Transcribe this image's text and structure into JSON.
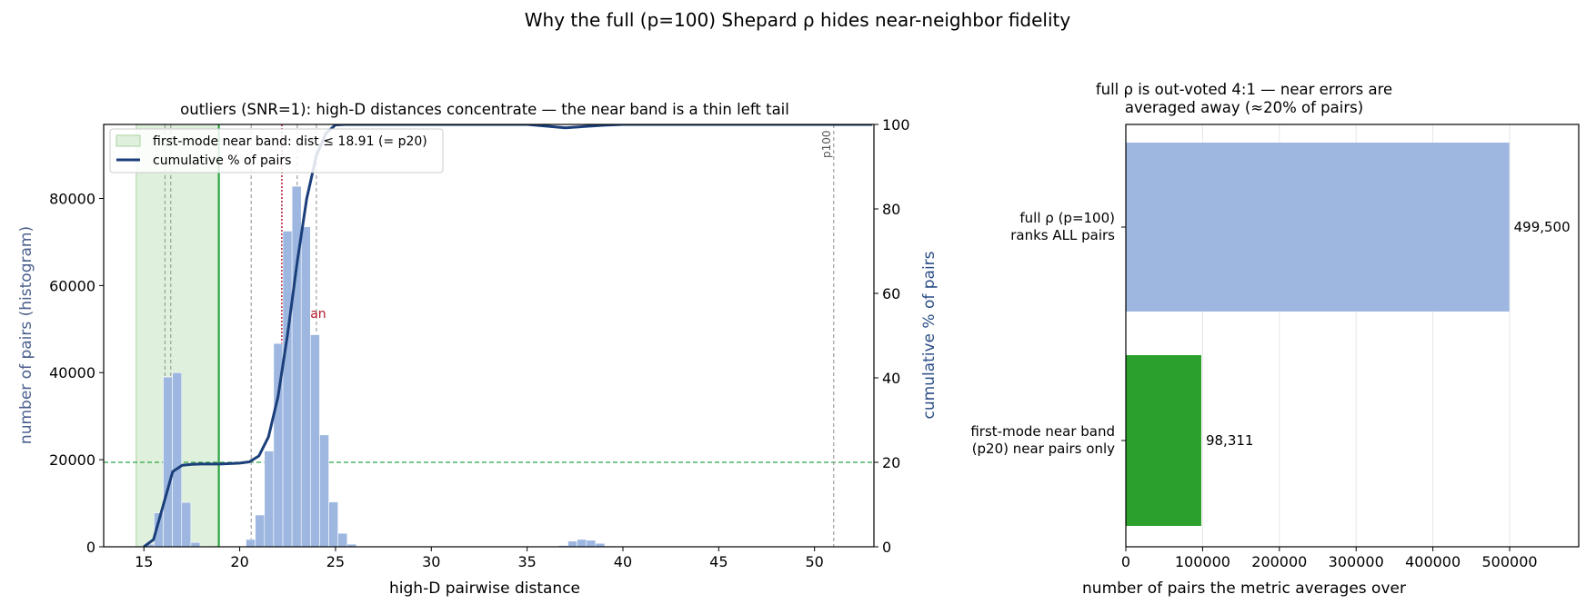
{
  "figure_title": "Why the full (p=100) Shepard ρ hides near-neighbor fidelity",
  "colors": {
    "hist": "#9db7e0",
    "cumulative": "#1b3f7a",
    "near_band_fill": "#dff0dc",
    "near_band_edge": "#a8d5a0",
    "threshold": "#2ca444",
    "mean_line": "#b2182b",
    "percentile_line": "#a0a0a0",
    "full_bar": "#9db7e0",
    "near_bar": "#2ca02c",
    "left_axis_label": "#4a5f8c",
    "right_axis_label": "#2a4d86"
  },
  "chart_data": [
    {
      "type": "bar",
      "title": "outliers (SNR=1): high-D distances concentrate — the near band is a thin left tail",
      "xlabel": "high-D pairwise distance",
      "ylabel": "number of pairs (histogram)",
      "ylabel_right": "cumulative % of pairs",
      "xlim": [
        12.9,
        53.1
      ],
      "ylim": [
        0,
        97000
      ],
      "ylim_right": [
        0,
        100
      ],
      "xticks": [
        15,
        20,
        25,
        30,
        35,
        40,
        45,
        50
      ],
      "yticks": [
        0,
        20000,
        40000,
        60000,
        80000
      ],
      "yticks_right": [
        0,
        20,
        40,
        60,
        80,
        100
      ],
      "bin_width": 0.48,
      "histogram": {
        "bin_left": [
          15.05,
          15.53,
          16.01,
          16.49,
          16.97,
          17.45,
          20.33,
          20.81,
          21.29,
          21.77,
          22.25,
          22.73,
          23.21,
          23.69,
          24.17,
          24.65,
          25.13,
          25.61,
          26.09,
          26.57,
          36.65,
          37.13,
          37.61,
          38.09,
          38.57,
          39.05,
          39.53
        ],
        "counts": [
          600,
          7800,
          39000,
          40000,
          10200,
          1000,
          1700,
          7300,
          22000,
          46700,
          72500,
          82800,
          73500,
          48700,
          25700,
          10300,
          3100,
          600,
          100,
          50,
          300,
          1300,
          1700,
          1500,
          800,
          200,
          80
        ]
      },
      "cumulative_percent": {
        "x": [
          15.0,
          15.5,
          16.0,
          16.5,
          17.0,
          17.5,
          18.0,
          18.5,
          19.0,
          19.5,
          20.0,
          20.5,
          21.0,
          21.5,
          22.0,
          22.5,
          23.0,
          23.5,
          24.0,
          24.5,
          25.0,
          25.5,
          26.0,
          27.0,
          28.0,
          30.0,
          35.0,
          37.0,
          38.0,
          39.0,
          40.0,
          45.0,
          50.0,
          53.0
        ],
        "y": [
          0,
          1.7,
          9.7,
          17.8,
          19.3,
          19.5,
          19.6,
          19.6,
          19.6,
          19.7,
          19.8,
          20.1,
          21.5,
          26.0,
          35.5,
          50.4,
          67.4,
          82.5,
          92.6,
          97.9,
          99.9,
          100,
          100,
          100,
          100,
          100,
          100,
          99.2,
          99.5,
          99.8,
          100,
          100,
          100,
          100
        ]
      },
      "near_band": {
        "label": "first-mode near band: dist ≤ 18.91 (= p20)",
        "x_start": 14.6,
        "x_end": 18.91
      },
      "cumulative_label": "cumulative % of pairs",
      "threshold_x": 18.91,
      "horizontal_reference_y": 20,
      "mean": {
        "x": 22.2,
        "label": "mean"
      },
      "percentile_lines": [
        16.1,
        16.4,
        20.6,
        23.0,
        24.0,
        51.0
      ],
      "p100": {
        "x": 51.0,
        "label": "p100"
      },
      "legend_position": "upper left"
    },
    {
      "type": "bar",
      "orientation": "horizontal",
      "title_lines": [
        "full ρ is out-voted 4:1 — near errors are",
        "averaged away (≈20% of pairs)"
      ],
      "xlabel": "number of pairs the metric averages over",
      "xlim": [
        0,
        590000
      ],
      "xticks": [
        0,
        100000,
        200000,
        300000,
        400000,
        500000
      ],
      "bars": [
        {
          "label_lines": [
            "full ρ (p=100)",
            "ranks ALL pairs"
          ],
          "value": 499500,
          "value_label": "499,500"
        },
        {
          "label_lines": [
            "first-mode near band",
            "(p20) near pairs only"
          ],
          "value": 98311,
          "value_label": "98,311"
        }
      ]
    }
  ]
}
